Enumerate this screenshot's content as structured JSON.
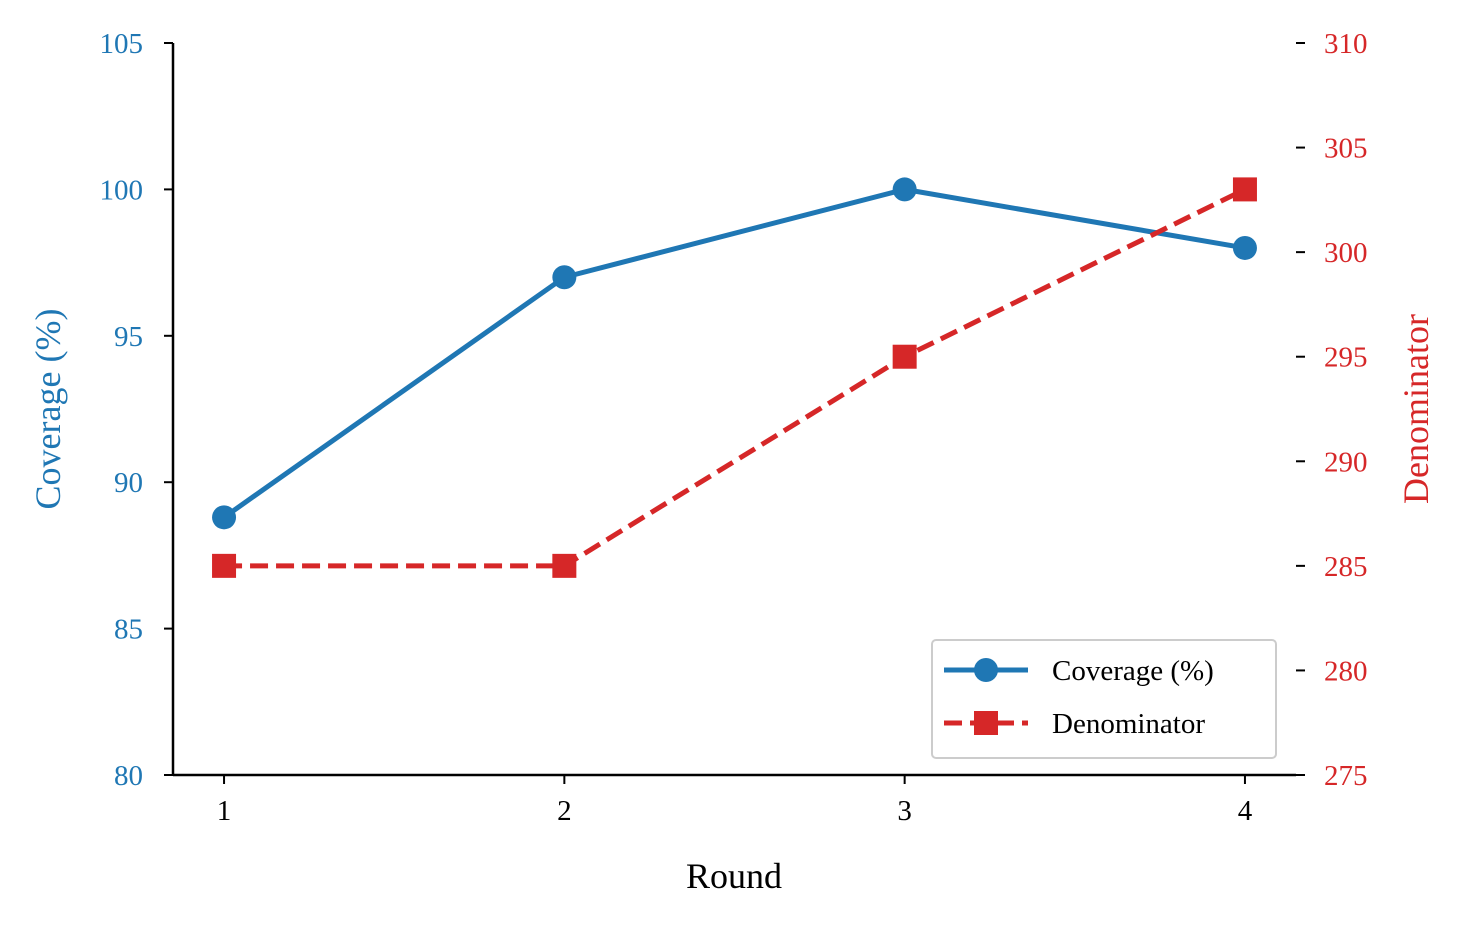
{
  "chart_data": {
    "type": "line",
    "title": "",
    "xlabel": "Round",
    "ylabel_left": "Coverage (%)",
    "ylabel_right": "Denominator",
    "x": [
      1,
      2,
      3,
      4
    ],
    "x_ticks": [
      "1",
      "2",
      "3",
      "4"
    ],
    "ylim_left": [
      80,
      105
    ],
    "ylim_right": [
      275,
      310
    ],
    "y_ticks_left": [
      "80",
      "85",
      "90",
      "95",
      "100",
      "105"
    ],
    "y_ticks_right": [
      "275",
      "280",
      "285",
      "290",
      "295",
      "300",
      "305",
      "310"
    ],
    "grid": false,
    "legend_position": "lower right",
    "series": [
      {
        "name": "Coverage (%)",
        "axis": "left",
        "values": [
          88.8,
          97.0,
          100.0,
          98.0
        ],
        "color": "#1f77b4",
        "marker": "circle",
        "linestyle": "solid"
      },
      {
        "name": "Denominator",
        "axis": "right",
        "values": [
          285,
          285,
          295,
          303
        ],
        "color": "#d62728",
        "marker": "square",
        "linestyle": "dashed"
      }
    ]
  }
}
